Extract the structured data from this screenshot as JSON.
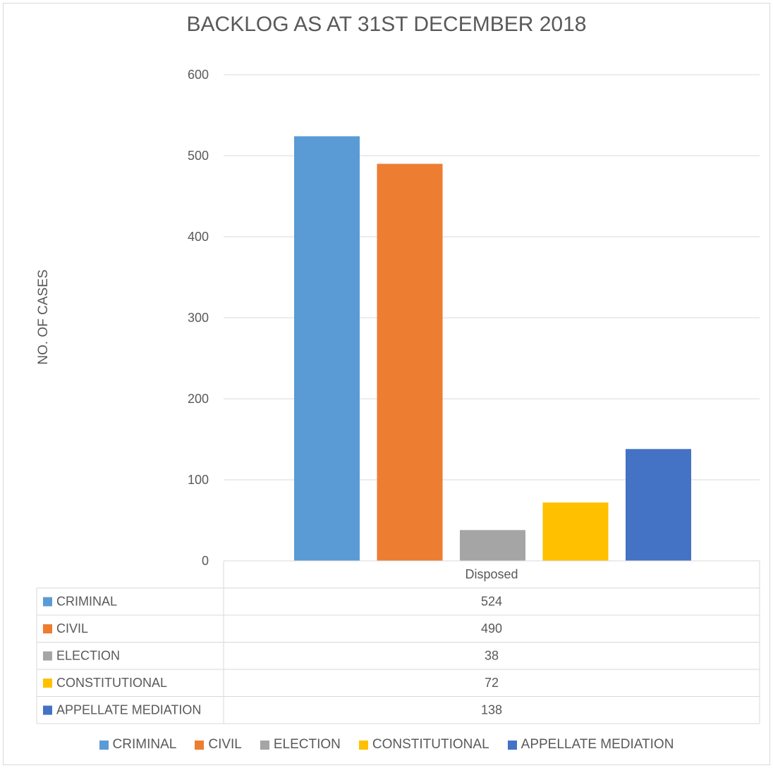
{
  "chart_data": {
    "type": "bar",
    "title": "BACKLOG AS AT 31ST  DECEMBER 2018",
    "xlabel": "",
    "ylabel": "NO. OF CASES",
    "ylim": [
      0,
      600
    ],
    "yticks": [
      0,
      100,
      200,
      300,
      400,
      500,
      600
    ],
    "grid": true,
    "legend_placement": "bottom",
    "categories": [
      "Disposed"
    ],
    "series": [
      {
        "name": "CRIMINAL",
        "values": [
          524
        ],
        "color": "#5b9bd5"
      },
      {
        "name": "CIVIL",
        "values": [
          490
        ],
        "color": "#ed7d31"
      },
      {
        "name": "ELECTION",
        "values": [
          38
        ],
        "color": "#a5a5a5"
      },
      {
        "name": "CONSTITUTIONAL",
        "values": [
          72
        ],
        "color": "#ffc000"
      },
      {
        "name": "APPELLATE MEDIATION",
        "values": [
          138
        ],
        "color": "#4472c4"
      }
    ],
    "data_table": true
  }
}
